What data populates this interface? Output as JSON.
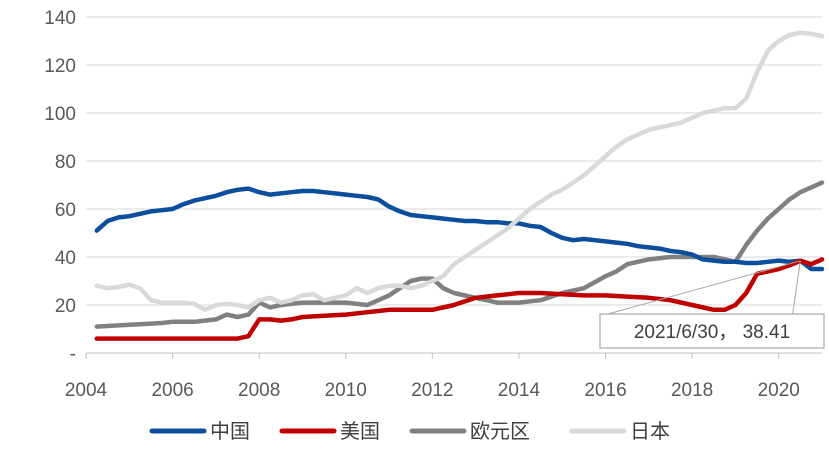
{
  "chart_data": {
    "type": "line",
    "title": "",
    "xlabel": "",
    "ylabel": "",
    "xlim": [
      2004,
      2021
    ],
    "ylim": [
      0,
      140
    ],
    "x_ticks": [
      2004,
      2006,
      2008,
      2010,
      2012,
      2014,
      2016,
      2018,
      2020
    ],
    "x_tick_labels": [
      "2004",
      "2006",
      "2008",
      "2010",
      "2012",
      "2014",
      "2016",
      "2018",
      "2020"
    ],
    "y_ticks": [
      0,
      20,
      40,
      60,
      80,
      100,
      120,
      140
    ],
    "y_tick_labels": [
      "-",
      "20",
      "40",
      "60",
      "80",
      "100",
      "120",
      "140"
    ],
    "grid": "horizontal",
    "legend_position": "bottom",
    "series": [
      {
        "name": "中国",
        "color": "#0b4f9c",
        "points": [
          [
            2004.25,
            51
          ],
          [
            2004.5,
            55
          ],
          [
            2004.75,
            56.5
          ],
          [
            2005,
            57
          ],
          [
            2005.25,
            58
          ],
          [
            2005.5,
            59
          ],
          [
            2005.75,
            59.5
          ],
          [
            2006,
            60
          ],
          [
            2006.25,
            62
          ],
          [
            2006.5,
            63.5
          ],
          [
            2006.75,
            64.5
          ],
          [
            2007,
            65.5
          ],
          [
            2007.25,
            67
          ],
          [
            2007.5,
            68
          ],
          [
            2007.75,
            68.5
          ],
          [
            2008,
            67
          ],
          [
            2008.25,
            66
          ],
          [
            2008.5,
            66.5
          ],
          [
            2008.75,
            67
          ],
          [
            2009,
            67.5
          ],
          [
            2009.25,
            67.5
          ],
          [
            2009.5,
            67
          ],
          [
            2009.75,
            66.5
          ],
          [
            2010,
            66
          ],
          [
            2010.25,
            65.5
          ],
          [
            2010.5,
            65
          ],
          [
            2010.75,
            64
          ],
          [
            2011,
            61
          ],
          [
            2011.25,
            59
          ],
          [
            2011.5,
            57.5
          ],
          [
            2011.75,
            57
          ],
          [
            2012,
            56.5
          ],
          [
            2012.25,
            56
          ],
          [
            2012.5,
            55.5
          ],
          [
            2012.75,
            55
          ],
          [
            2013,
            55
          ],
          [
            2013.25,
            54.5
          ],
          [
            2013.5,
            54.5
          ],
          [
            2013.75,
            54
          ],
          [
            2014,
            54
          ],
          [
            2014.25,
            53
          ],
          [
            2014.5,
            52.5
          ],
          [
            2014.75,
            50
          ],
          [
            2015,
            48
          ],
          [
            2015.25,
            47
          ],
          [
            2015.5,
            47.5
          ],
          [
            2015.75,
            47
          ],
          [
            2016,
            46.5
          ],
          [
            2016.25,
            46
          ],
          [
            2016.5,
            45.5
          ],
          [
            2016.75,
            44.5
          ],
          [
            2017,
            44
          ],
          [
            2017.25,
            43.5
          ],
          [
            2017.5,
            42.5
          ],
          [
            2017.75,
            42
          ],
          [
            2018,
            41
          ],
          [
            2018.25,
            39
          ],
          [
            2018.5,
            38.5
          ],
          [
            2018.75,
            38
          ],
          [
            2019,
            38
          ],
          [
            2019.25,
            37.5
          ],
          [
            2019.5,
            37.5
          ],
          [
            2019.75,
            38
          ],
          [
            2020,
            38.5
          ],
          [
            2020.25,
            38
          ],
          [
            2020.5,
            38.41
          ],
          [
            2020.75,
            35
          ],
          [
            2021,
            35
          ]
        ]
      },
      {
        "name": "美国",
        "color": "#c00000",
        "points": [
          [
            2004.25,
            6
          ],
          [
            2004.75,
            6
          ],
          [
            2005,
            6
          ],
          [
            2005.5,
            6
          ],
          [
            2006,
            6
          ],
          [
            2006.5,
            6
          ],
          [
            2007,
            6
          ],
          [
            2007.5,
            6
          ],
          [
            2007.75,
            7
          ],
          [
            2008,
            14
          ],
          [
            2008.25,
            14
          ],
          [
            2008.5,
            13.5
          ],
          [
            2008.75,
            14
          ],
          [
            2009,
            15
          ],
          [
            2009.5,
            15.5
          ],
          [
            2010,
            16
          ],
          [
            2010.5,
            17
          ],
          [
            2011,
            18
          ],
          [
            2011.5,
            18
          ],
          [
            2012,
            18
          ],
          [
            2012.5,
            20
          ],
          [
            2013,
            23
          ],
          [
            2013.5,
            24
          ],
          [
            2014,
            25
          ],
          [
            2014.5,
            25
          ],
          [
            2015,
            24.5
          ],
          [
            2015.5,
            24
          ],
          [
            2016,
            24
          ],
          [
            2016.5,
            23.5
          ],
          [
            2017,
            23
          ],
          [
            2017.5,
            22
          ],
          [
            2018,
            20
          ],
          [
            2018.5,
            18
          ],
          [
            2018.75,
            18
          ],
          [
            2019,
            20
          ],
          [
            2019.25,
            25
          ],
          [
            2019.5,
            33
          ],
          [
            2019.75,
            34
          ],
          [
            2020,
            35
          ],
          [
            2020.25,
            36.5
          ],
          [
            2020.5,
            38.41
          ],
          [
            2020.75,
            37
          ],
          [
            2021,
            39
          ]
        ]
      },
      {
        "name": "欧元区",
        "color": "#808080",
        "points": [
          [
            2004.25,
            11
          ],
          [
            2004.75,
            11.5
          ],
          [
            2005.25,
            12
          ],
          [
            2005.75,
            12.5
          ],
          [
            2006,
            13
          ],
          [
            2006.5,
            13
          ],
          [
            2007,
            14
          ],
          [
            2007.25,
            16
          ],
          [
            2007.5,
            15
          ],
          [
            2007.75,
            16
          ],
          [
            2008,
            21
          ],
          [
            2008.25,
            19
          ],
          [
            2008.5,
            20
          ],
          [
            2009,
            21
          ],
          [
            2009.5,
            21
          ],
          [
            2010,
            21
          ],
          [
            2010.5,
            20
          ],
          [
            2011,
            24
          ],
          [
            2011.5,
            30
          ],
          [
            2011.75,
            31
          ],
          [
            2012,
            31
          ],
          [
            2012.25,
            27
          ],
          [
            2012.5,
            25
          ],
          [
            2013,
            23
          ],
          [
            2013.5,
            21
          ],
          [
            2014,
            21
          ],
          [
            2014.5,
            22
          ],
          [
            2015,
            25
          ],
          [
            2015.5,
            27
          ],
          [
            2016,
            32
          ],
          [
            2016.25,
            34
          ],
          [
            2016.5,
            37
          ],
          [
            2017,
            39
          ],
          [
            2017.5,
            40
          ],
          [
            2018,
            40
          ],
          [
            2018.5,
            40
          ],
          [
            2019,
            38
          ],
          [
            2019.25,
            45
          ],
          [
            2019.5,
            51
          ],
          [
            2019.75,
            56
          ],
          [
            2020,
            60
          ],
          [
            2020.25,
            64
          ],
          [
            2020.5,
            67
          ],
          [
            2020.75,
            69
          ],
          [
            2021,
            71
          ]
        ]
      },
      {
        "name": "日本",
        "color": "#d9d9d9",
        "points": [
          [
            2004.25,
            28
          ],
          [
            2004.5,
            27
          ],
          [
            2004.75,
            27.5
          ],
          [
            2005,
            28.5
          ],
          [
            2005.25,
            27
          ],
          [
            2005.5,
            22
          ],
          [
            2005.75,
            21
          ],
          [
            2006,
            21
          ],
          [
            2006.25,
            21
          ],
          [
            2006.5,
            20.5
          ],
          [
            2006.75,
            18
          ],
          [
            2007,
            20
          ],
          [
            2007.25,
            20.5
          ],
          [
            2007.5,
            20
          ],
          [
            2007.75,
            19
          ],
          [
            2008,
            22
          ],
          [
            2008.25,
            23
          ],
          [
            2008.5,
            21
          ],
          [
            2008.75,
            22
          ],
          [
            2009,
            24
          ],
          [
            2009.25,
            24.5
          ],
          [
            2009.5,
            22
          ],
          [
            2009.75,
            23
          ],
          [
            2010,
            24
          ],
          [
            2010.25,
            27
          ],
          [
            2010.5,
            25
          ],
          [
            2010.75,
            27
          ],
          [
            2011,
            28
          ],
          [
            2011.25,
            28
          ],
          [
            2011.5,
            27
          ],
          [
            2011.75,
            28
          ],
          [
            2012,
            30
          ],
          [
            2012.25,
            32
          ],
          [
            2012.5,
            37
          ],
          [
            2012.75,
            40
          ],
          [
            2013,
            43
          ],
          [
            2013.25,
            46
          ],
          [
            2013.5,
            49
          ],
          [
            2013.75,
            52
          ],
          [
            2014,
            56
          ],
          [
            2014.25,
            60
          ],
          [
            2014.5,
            63
          ],
          [
            2014.75,
            66
          ],
          [
            2015,
            68
          ],
          [
            2015.25,
            71
          ],
          [
            2015.5,
            74
          ],
          [
            2015.75,
            78
          ],
          [
            2016,
            82
          ],
          [
            2016.25,
            86
          ],
          [
            2016.5,
            89
          ],
          [
            2016.75,
            91
          ],
          [
            2017,
            93
          ],
          [
            2017.25,
            94
          ],
          [
            2017.5,
            95
          ],
          [
            2017.75,
            96
          ],
          [
            2018,
            98
          ],
          [
            2018.25,
            100
          ],
          [
            2018.5,
            101
          ],
          [
            2018.75,
            102
          ],
          [
            2019,
            102
          ],
          [
            2019.25,
            106
          ],
          [
            2019.5,
            117
          ],
          [
            2019.75,
            126
          ],
          [
            2020,
            130
          ],
          [
            2020.25,
            132.5
          ],
          [
            2020.5,
            133.5
          ],
          [
            2020.75,
            133
          ],
          [
            2021,
            132
          ]
        ]
      }
    ],
    "annotation": {
      "text": "2021/6/30，  38.41",
      "target_x": 2020.5,
      "target_y": 38.41
    }
  }
}
